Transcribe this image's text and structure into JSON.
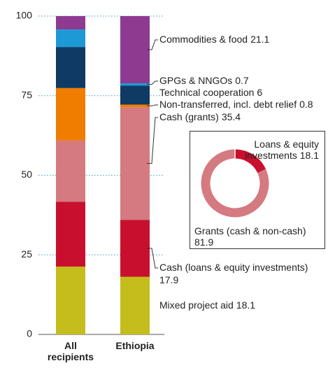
{
  "chart_data": [
    {
      "type": "bar",
      "stacked": true,
      "categories": [
        "All recipients",
        "Ethiopia"
      ],
      "ylim": [
        0,
        100
      ],
      "yticks": [
        0,
        25,
        50,
        75,
        100
      ],
      "grid": true,
      "series": [
        {
          "name": "Mixed project aid",
          "color": "#c4bd1c",
          "values": [
            21.3,
            18.1
          ]
        },
        {
          "name": "Cash (loans & equity investments)",
          "color": "#c8102e",
          "values": [
            20.4,
            17.9
          ]
        },
        {
          "name": "Cash (grants)",
          "color": "#d57a80",
          "values": [
            19.2,
            35.4
          ]
        },
        {
          "name": "Non-transferred, incl. debt relief",
          "color": "#f07d00",
          "values": [
            16.5,
            0.8
          ]
        },
        {
          "name": "Technical cooperation",
          "color": "#0e3a63",
          "values": [
            12.9,
            6.0
          ]
        },
        {
          "name": "GPGs & NNGOs",
          "color": "#1d9ad6",
          "values": [
            5.5,
            0.7
          ]
        },
        {
          "name": "Commodities & food",
          "color": "#8e3a91",
          "values": [
            4.2,
            21.1
          ]
        }
      ]
    },
    {
      "type": "pie",
      "donut": true,
      "categories": [
        "Loans & equity investments",
        "Grants (cash & non-cash)"
      ],
      "values": [
        18.1,
        81.9
      ],
      "colors": [
        "#c8102e",
        "#d57a80"
      ]
    }
  ]
}
